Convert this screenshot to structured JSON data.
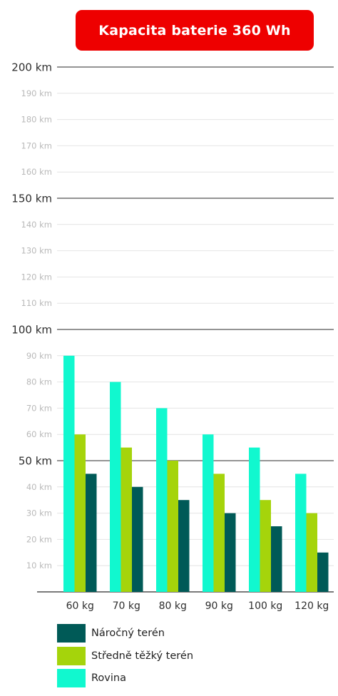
{
  "chart_data": {
    "type": "bar",
    "title": "Kapacita baterie 360 Wh",
    "categories": [
      "60 kg",
      "70 kg",
      "80 kg",
      "90 kg",
      "100 kg",
      "120 kg"
    ],
    "series": [
      {
        "name": "Rovina",
        "values": [
          90,
          80,
          70,
          60,
          55,
          45
        ]
      },
      {
        "name": "Středně těžký terén",
        "values": [
          60,
          55,
          50,
          45,
          35,
          30
        ]
      },
      {
        "name": "Náročný terén",
        "values": [
          45,
          40,
          35,
          30,
          25,
          15
        ]
      }
    ],
    "ylim": [
      0,
      200
    ],
    "yticks": [
      {
        "label": "10 km",
        "major": false
      },
      {
        "label": "20 km",
        "major": false
      },
      {
        "label": "30 km",
        "major": false
      },
      {
        "label": "40 km",
        "major": false
      },
      {
        "label": "50 km",
        "major": true
      },
      {
        "label": "60 km",
        "major": false
      },
      {
        "label": "70 km",
        "major": false
      },
      {
        "label": "80 km",
        "major": false
      },
      {
        "label": "90 km",
        "major": false
      },
      {
        "label": "100 km",
        "major": true
      },
      {
        "label": "110 km",
        "major": false
      },
      {
        "label": "120 km",
        "major": false
      },
      {
        "label": "130 km",
        "major": false
      },
      {
        "label": "140 km",
        "major": false
      },
      {
        "label": "150 km",
        "major": true
      },
      {
        "label": "160 km",
        "major": false
      },
      {
        "label": "170 km",
        "major": false
      },
      {
        "label": "180 km",
        "major": false
      },
      {
        "label": "190 km",
        "major": false
      },
      {
        "label": "200 km",
        "major": true
      }
    ],
    "xlabel": "",
    "ylabel": "",
    "grid": true,
    "legend_position": "bottom-left"
  },
  "colors": {
    "title_bg": "#ee0000",
    "rovina": "#11f8cf",
    "stredne": "#a5d40b",
    "narocny": "#005a57",
    "grid_minor": "#e4e4e4",
    "grid_major": "#2a2a2a",
    "tick_minor": "#b9b9b9",
    "tick_major": "#2e2e2e"
  },
  "legend": [
    {
      "label": "Náročný terén",
      "series": "Náročný terén"
    },
    {
      "label": "Středně těžký terén",
      "series": "Středně těžký terén"
    },
    {
      "label": "Rovina",
      "series": "Rovina"
    }
  ]
}
